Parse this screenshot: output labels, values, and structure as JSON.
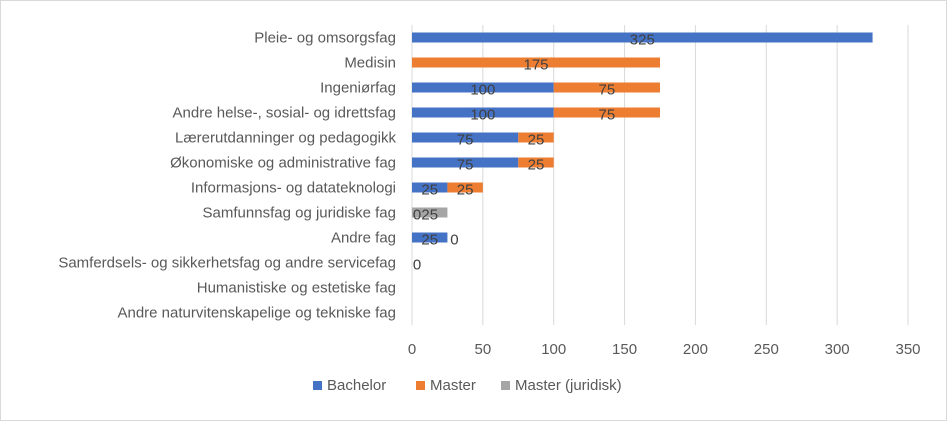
{
  "chart_data": {
    "type": "bar",
    "orientation": "horizontal",
    "stacked": true,
    "categories": [
      "Pleie- og omsorgsfag",
      "Medisin",
      "Ingeniørfag",
      "Andre helse-, sosial- og idrettsfag",
      "Lærerutdanninger og pedagogikk",
      "Økonomiske og administrative fag",
      "Informasjons- og datateknologi",
      "Samfunnsfag og juridiske fag",
      "Andre fag",
      "Samferdsels- og sikkerhetsfag og andre servicefag",
      "Humanistiske og estetiske fag",
      "Andre naturvitenskapelige og tekniske fag"
    ],
    "series": [
      {
        "name": "Bachelor",
        "color": "#4472C4",
        "values": [
          325,
          null,
          100,
          100,
          75,
          75,
          25,
          0,
          25,
          0,
          null,
          null
        ]
      },
      {
        "name": "Master",
        "color": "#ED7D31",
        "values": [
          null,
          175,
          75,
          75,
          25,
          25,
          25,
          null,
          0,
          null,
          null,
          null
        ]
      },
      {
        "name": "Master (juridisk)",
        "color": "#A5A5A5",
        "values": [
          null,
          null,
          null,
          null,
          null,
          null,
          null,
          25,
          null,
          null,
          null,
          null
        ]
      }
    ],
    "xlim": [
      0,
      350
    ],
    "xticks": [
      "0",
      "50",
      "100",
      "150",
      "200",
      "250",
      "300",
      "350"
    ],
    "grid": true,
    "legend_position": "bottom",
    "title": "",
    "xlabel": "",
    "ylabel": ""
  }
}
